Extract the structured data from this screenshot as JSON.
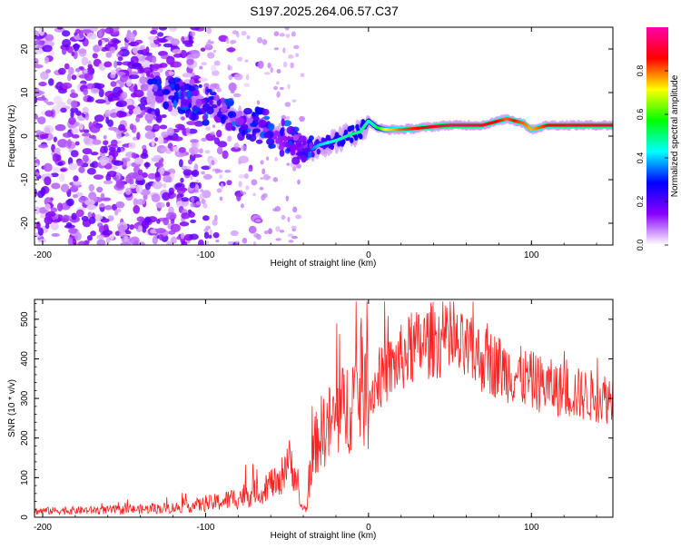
{
  "page_title": "S197.2025.264.06.57.C37",
  "chart_data": [
    {
      "type": "heatmap",
      "title": "",
      "xlabel": "Height of straight line (km)",
      "ylabel": "Frequency (Hz)",
      "xlim": [
        -205,
        150
      ],
      "ylim": [
        -25,
        25
      ],
      "x_ticks": [
        -200,
        -100,
        0,
        100
      ],
      "x_tick_labels": [
        "-200",
        "-100",
        "0",
        "100"
      ],
      "y_ticks": [
        -20,
        -10,
        0,
        10,
        20
      ],
      "y_tick_labels": [
        "-20",
        "-10",
        "0",
        "10",
        "20"
      ],
      "ridge": {
        "x": [
          -130,
          -120,
          -110,
          -100,
          -90,
          -80,
          -70,
          -60,
          -50,
          -40,
          -35,
          -30,
          -20,
          -10,
          -5,
          0,
          5,
          10,
          20,
          30,
          40,
          50,
          60,
          70,
          80,
          85,
          90,
          95,
          100,
          105,
          110,
          120,
          130,
          140,
          150
        ],
        "y": [
          9,
          10,
          9,
          7,
          5,
          4,
          3,
          1,
          -1,
          -3,
          -3,
          -2,
          -1,
          0.5,
          1,
          3.5,
          2,
          1.5,
          1.5,
          1.8,
          2.2,
          2.5,
          2.5,
          2.5,
          3.5,
          4,
          3.5,
          3,
          1.5,
          2,
          2.5,
          2.5,
          2.5,
          2.5,
          2.5
        ],
        "amplitude": [
          0.1,
          0.12,
          0.15,
          0.12,
          0.15,
          0.15,
          0.18,
          0.22,
          0.25,
          0.3,
          0.35,
          0.4,
          0.45,
          0.5,
          0.5,
          0.45,
          0.5,
          0.7,
          0.8,
          0.85,
          0.9,
          0.95,
          0.95,
          0.9,
          0.85,
          0.8,
          0.85,
          0.8,
          0.75,
          0.8,
          0.85,
          0.9,
          0.9,
          0.9,
          0.9
        ]
      },
      "colorbar": {
        "label": "Normalized spectral amplitude",
        "range": [
          0,
          1
        ],
        "ticks": [
          0.0,
          0.2,
          0.4,
          0.6,
          0.8
        ],
        "tick_labels": [
          "0.0",
          "0.2",
          "0.4",
          "0.6",
          "0.8"
        ],
        "colors": [
          "#ffffff",
          "#8a00ff",
          "#0000ff",
          "#00ffff",
          "#00ff00",
          "#ffff00",
          "#ff0000",
          "#ff00aa"
        ]
      }
    },
    {
      "type": "line",
      "title": "",
      "xlabel": "Height of straight line (km)",
      "ylabel": "SNR (10 * v/v)",
      "xlim": [
        -205,
        150
      ],
      "ylim": [
        0,
        550
      ],
      "x_ticks": [
        -200,
        -100,
        0,
        100
      ],
      "x_tick_labels": [
        "-200",
        "-100",
        "0",
        "100"
      ],
      "y_ticks": [
        0,
        100,
        200,
        300,
        400,
        500
      ],
      "y_tick_labels": [
        "0",
        "100",
        "200",
        "300",
        "400",
        "500"
      ],
      "line_color": "#ff2020",
      "series": [
        {
          "name": "SNR",
          "x": [
            -205,
            -200,
            -180,
            -160,
            -140,
            -130,
            -120,
            -110,
            -100,
            -90,
            -80,
            -70,
            -65,
            -60,
            -55,
            -50,
            -45,
            -42,
            -38,
            -35,
            -32,
            -30,
            -25,
            -20,
            -15,
            -10,
            -5,
            0,
            5,
            10,
            15,
            20,
            25,
            30,
            35,
            40,
            45,
            50,
            60,
            70,
            80,
            90,
            100,
            110,
            120,
            130,
            140,
            150
          ],
          "values": [
            15,
            16,
            17,
            18,
            20,
            22,
            24,
            28,
            33,
            40,
            50,
            65,
            60,
            90,
            80,
            150,
            110,
            30,
            20,
            140,
            190,
            210,
            230,
            250,
            270,
            300,
            320,
            300,
            340,
            360,
            380,
            400,
            420,
            430,
            440,
            450,
            445,
            435,
            420,
            400,
            380,
            360,
            345,
            330,
            320,
            310,
            305,
            300
          ]
        }
      ]
    }
  ]
}
